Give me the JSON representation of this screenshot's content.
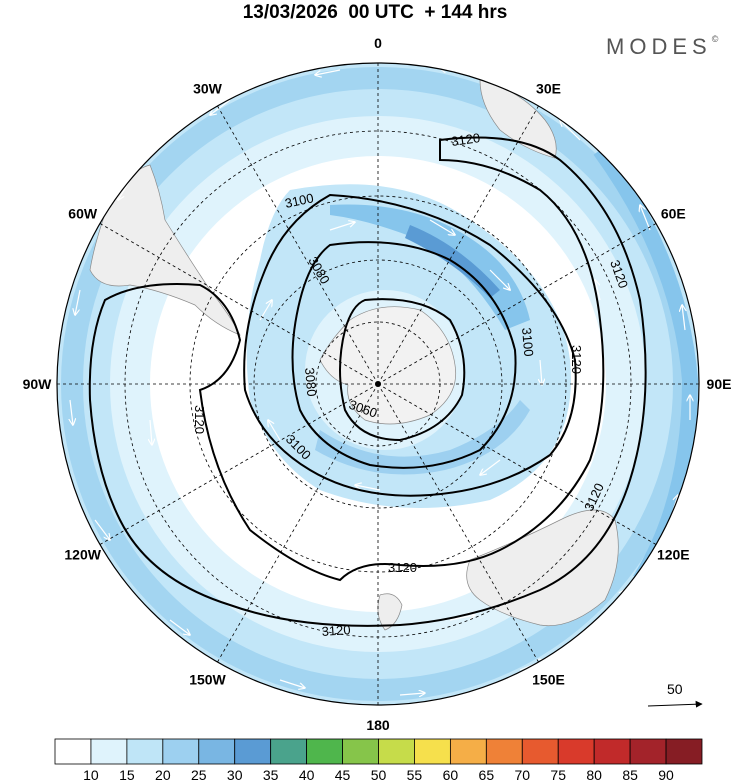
{
  "title": "13/03/2026  00 UTC  + 144 hrs",
  "logo": "MODES",
  "logo_mark": "©",
  "meridian_labels": [
    {
      "text": "0",
      "lon": 0
    },
    {
      "text": "30E",
      "lon": 30
    },
    {
      "text": "60E",
      "lon": 60
    },
    {
      "text": "90E",
      "lon": 90
    },
    {
      "text": "120E",
      "lon": 120
    },
    {
      "text": "150E",
      "lon": 150
    },
    {
      "text": "180",
      "lon": 180
    },
    {
      "text": "150W",
      "lon": -150
    },
    {
      "text": "120W",
      "lon": -120
    },
    {
      "text": "90W",
      "lon": -90
    },
    {
      "text": "60W",
      "lon": -60
    },
    {
      "text": "30W",
      "lon": -30
    }
  ],
  "contour_labels": [
    "3120",
    "3120",
    "3120",
    "3120",
    "3120",
    "3120",
    "3120",
    "3100",
    "3100",
    "3100",
    "3080",
    "3080",
    "3060"
  ],
  "reference_vector": "50",
  "colorbar": {
    "ticks": [
      "10",
      "15",
      "20",
      "25",
      "30",
      "35",
      "40",
      "45",
      "50",
      "55",
      "60",
      "65",
      "70",
      "75",
      "80",
      "85",
      "90"
    ],
    "colors": [
      "#ffffff",
      "#dff3fc",
      "#bfe5f7",
      "#9dd0f0",
      "#79b6e3",
      "#5a9bd4",
      "#4aa38c",
      "#4fb64c",
      "#86c54a",
      "#c6dc4a",
      "#f6e04c",
      "#f5ae47",
      "#ef8137",
      "#e75a2f",
      "#d93a2b",
      "#c12a2a",
      "#a3232a",
      "#861d24"
    ]
  }
}
